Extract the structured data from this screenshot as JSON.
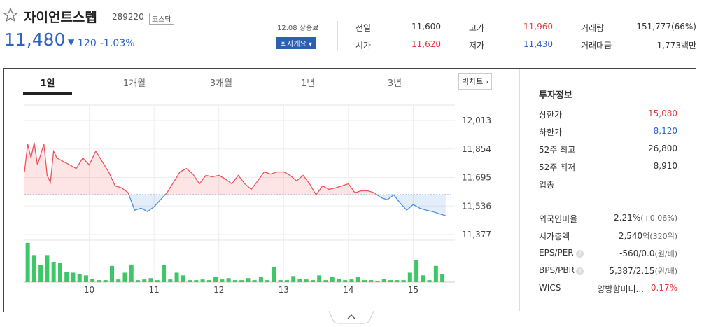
{
  "header": {
    "name": "자이언트스텝",
    "code": "289220",
    "market": "코스닥",
    "price": "11,480",
    "change": "120",
    "change_rate": "-1.03%",
    "status": "12.08 장종료",
    "company_button": "회사개요"
  },
  "quote": {
    "rows": [
      [
        "전일",
        "11,600",
        "고가",
        "11,960",
        "거래량",
        "151,777(66%)"
      ],
      [
        "시가",
        "11,620",
        "저가",
        "11,430",
        "거래대금",
        "1,773백만"
      ]
    ]
  },
  "tabs": [
    "1일",
    "1개월",
    "3개월",
    "1년",
    "3년"
  ],
  "big_chart": "빅차트",
  "info": {
    "title": "투자정보",
    "rows1": [
      [
        "상한가",
        "15,080"
      ],
      [
        "하한가",
        "8,120"
      ],
      [
        "52주 최고",
        "26,800"
      ],
      [
        "52주 최저",
        "8,910"
      ],
      [
        "업종",
        null
      ]
    ],
    "rows2": [
      [
        "외국인비율",
        "2.21%",
        "(+0.06%)"
      ],
      [
        "시가총액",
        "2,540",
        "억(320위)"
      ],
      [
        "EPS/PER",
        "-560/0.0",
        "(원/배)"
      ],
      [
        "BPS/PBR",
        "5,387/2.15",
        "(원/배)"
      ],
      [
        "WICS",
        "양방향미디...",
        "0.17%"
      ]
    ]
  },
  "chart_data": [
    {
      "type": "line",
      "baseline": 11600,
      "x": [
        9.0,
        9.05,
        9.1,
        9.15,
        9.2,
        9.3,
        9.35,
        9.4,
        9.45,
        9.5,
        9.6,
        9.7,
        9.8,
        9.9,
        10.0,
        10.1,
        10.2,
        10.3,
        10.4,
        10.5,
        10.6,
        10.7,
        10.8,
        10.9,
        11.0,
        11.1,
        11.2,
        11.3,
        11.4,
        11.5,
        11.6,
        11.7,
        11.8,
        11.9,
        12.0,
        12.1,
        12.2,
        12.3,
        12.4,
        12.5,
        12.6,
        12.7,
        12.8,
        12.9,
        13.0,
        13.1,
        13.2,
        13.3,
        13.4,
        13.5,
        13.6,
        13.7,
        13.8,
        13.9,
        14.0,
        14.1,
        14.2,
        14.3,
        14.4,
        14.5,
        14.6,
        14.7,
        14.8,
        14.9,
        15.0,
        15.1,
        15.2,
        15.3,
        15.4,
        15.5
      ],
      "values": [
        11726,
        11881,
        11804,
        11889,
        11765,
        11881,
        11707,
        11668,
        11842,
        11804,
        11784,
        11765,
        11745,
        11804,
        11765,
        11842,
        11784,
        11726,
        11648,
        11637,
        11610,
        11513,
        11524,
        11505,
        11532,
        11571,
        11610,
        11668,
        11726,
        11745,
        11714,
        11660,
        11707,
        11699,
        11707,
        11687,
        11660,
        11707,
        11660,
        11629,
        11676,
        11726,
        11714,
        11726,
        11726,
        11707,
        11676,
        11707,
        11660,
        11598,
        11648,
        11629,
        11637,
        11648,
        11660,
        11610,
        11621,
        11621,
        11610,
        11583,
        11571,
        11598,
        11552,
        11513,
        11544,
        11524,
        11513,
        11505,
        11493,
        11482
      ],
      "xlim": [
        9,
        15.6
      ],
      "xticks": [
        10,
        11,
        12,
        13,
        14,
        15
      ],
      "ylim": [
        11377,
        12013
      ],
      "yticks": [
        {
          "value": 12013,
          "label": "12,013"
        },
        {
          "value": 11854,
          "label": "11,854"
        },
        {
          "value": 11695,
          "label": "11,695"
        },
        {
          "value": 11536,
          "label": "11,536"
        },
        {
          "value": 11377,
          "label": "11,377"
        }
      ],
      "up_color": "#f0505a",
      "down_color": "#4a8fe0",
      "grid": true
    },
    {
      "type": "bar",
      "color": "#3dc767",
      "x": [
        9.05,
        9.15,
        9.25,
        9.35,
        9.45,
        9.55,
        9.65,
        9.75,
        9.85,
        9.95,
        10.05,
        10.15,
        10.25,
        10.35,
        10.45,
        10.55,
        10.65,
        10.75,
        10.85,
        10.95,
        11.05,
        11.15,
        11.25,
        11.35,
        11.45,
        11.55,
        11.65,
        11.75,
        11.85,
        11.95,
        12.05,
        12.15,
        12.25,
        12.35,
        12.45,
        12.55,
        12.65,
        12.75,
        12.85,
        12.95,
        13.05,
        13.15,
        13.25,
        13.35,
        13.45,
        13.55,
        13.65,
        13.75,
        13.85,
        13.95,
        14.05,
        14.15,
        14.25,
        14.35,
        14.45,
        14.55,
        14.65,
        14.75,
        14.85,
        14.95,
        15.05,
        15.15,
        15.25,
        15.35,
        15.45
      ],
      "values": [
        58,
        40,
        25,
        40,
        30,
        28,
        15,
        14,
        12,
        10,
        5,
        3,
        3,
        24,
        4,
        14,
        26,
        3,
        4,
        6,
        3,
        25,
        4,
        14,
        10,
        3,
        3,
        4,
        3,
        8,
        4,
        6,
        3,
        3,
        6,
        3,
        8,
        3,
        22,
        3,
        3,
        9,
        5,
        4,
        3,
        10,
        3,
        8,
        5,
        3,
        4,
        8,
        3,
        3,
        2,
        5,
        3,
        3,
        3,
        14,
        32,
        10,
        3,
        24,
        12
      ],
      "ylim": [
        0,
        60
      ]
    }
  ]
}
